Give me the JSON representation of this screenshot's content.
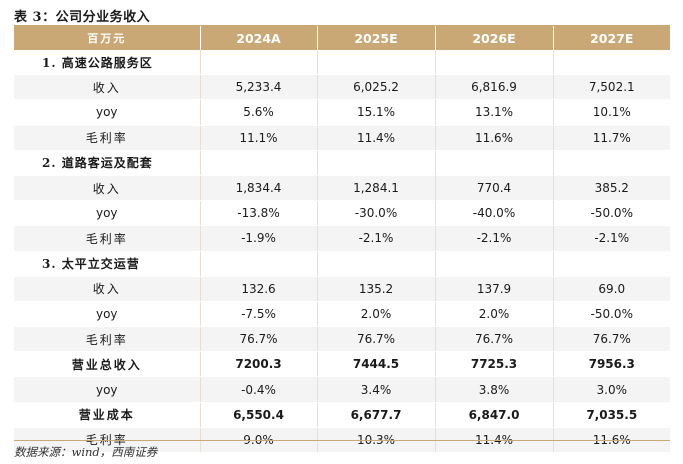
{
  "title": "表 3：公司分业务收入",
  "header": {
    "unit": "百万元",
    "years": [
      "2024A",
      "2025E",
      "2026E",
      "2027E"
    ]
  },
  "rows": [
    {
      "type": "section",
      "label": "1. 高速公路服务区"
    },
    {
      "type": "data",
      "label": "收入",
      "values": [
        "5,233.4",
        "6,025.2",
        "6,816.9",
        "7,502.1"
      ]
    },
    {
      "type": "data",
      "label": "yoy",
      "values": [
        "5.6%",
        "15.1%",
        "13.1%",
        "10.1%"
      ]
    },
    {
      "type": "data",
      "label": "毛利率",
      "values": [
        "11.1%",
        "11.4%",
        "11.6%",
        "11.7%"
      ]
    },
    {
      "type": "section",
      "label": "2. 道路客运及配套"
    },
    {
      "type": "data",
      "label": "收入",
      "values": [
        "1,834.4",
        "1,284.1",
        "770.4",
        "385.2"
      ]
    },
    {
      "type": "data",
      "label": "yoy",
      "values": [
        "-13.8%",
        "-30.0%",
        "-40.0%",
        "-50.0%"
      ]
    },
    {
      "type": "data",
      "label": "毛利率",
      "values": [
        "-1.9%",
        "-2.1%",
        "-2.1%",
        "-2.1%"
      ]
    },
    {
      "type": "section",
      "label": "3. 太平立交运营"
    },
    {
      "type": "data",
      "label": "收入",
      "values": [
        "132.6",
        "135.2",
        "137.9",
        "69.0"
      ]
    },
    {
      "type": "data",
      "label": "yoy",
      "values": [
        "-7.5%",
        "2.0%",
        "2.0%",
        "-50.0%"
      ]
    },
    {
      "type": "data",
      "label": "毛利率",
      "values": [
        "76.7%",
        "76.7%",
        "76.7%",
        "76.7%"
      ]
    },
    {
      "type": "bold",
      "label": "营业总收入",
      "values": [
        "7200.3",
        "7444.5",
        "7725.3",
        "7956.3"
      ]
    },
    {
      "type": "data",
      "label": "yoy",
      "values": [
        "-0.4%",
        "3.4%",
        "3.8%",
        "3.0%"
      ]
    },
    {
      "type": "bold",
      "label": "营业成本",
      "values": [
        "6,550.4",
        "6,677.7",
        "6,847.0",
        "7,035.5"
      ]
    },
    {
      "type": "data",
      "label": "毛利率",
      "values": [
        "9.0%",
        "10.3%",
        "11.4%",
        "11.6%"
      ]
    }
  ],
  "source": "数据来源：wind，西南证券",
  "colors": {
    "header_bg": "#c9a875",
    "row_odd": "#ffffff",
    "row_even": "#f4f4f4"
  }
}
